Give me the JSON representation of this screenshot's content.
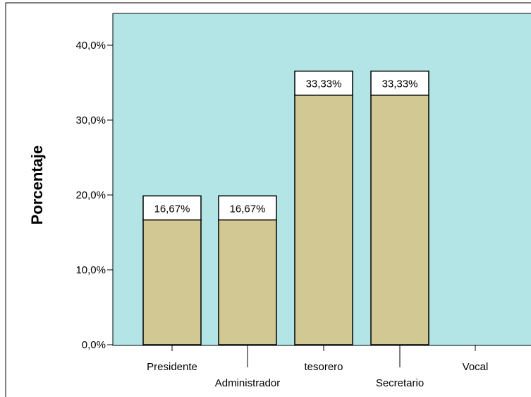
{
  "chart_data": {
    "type": "bar",
    "categories": [
      "Presidente",
      "Administrador",
      "tesorero",
      "Secretario",
      "Vocal"
    ],
    "values": [
      16.67,
      16.67,
      33.33,
      33.33,
      0
    ],
    "data_labels": [
      "16,67%",
      "16,67%",
      "33,33%",
      "33,33%",
      ""
    ],
    "ylabel": "Porcentaje",
    "xlabel": "",
    "ylim": [
      0,
      45
    ],
    "yticks": [
      0,
      10,
      20,
      30,
      40
    ],
    "ytick_labels": [
      "0,0%",
      "10,0%",
      "20,0%",
      "30,0%",
      "40,0%"
    ],
    "grid": false,
    "legend": "none"
  },
  "colors": {
    "plot_background": "#b3e5e6",
    "bar_fill": "#d2c894",
    "bar_stroke": "#000000",
    "label_box_fill": "#ffffff"
  }
}
